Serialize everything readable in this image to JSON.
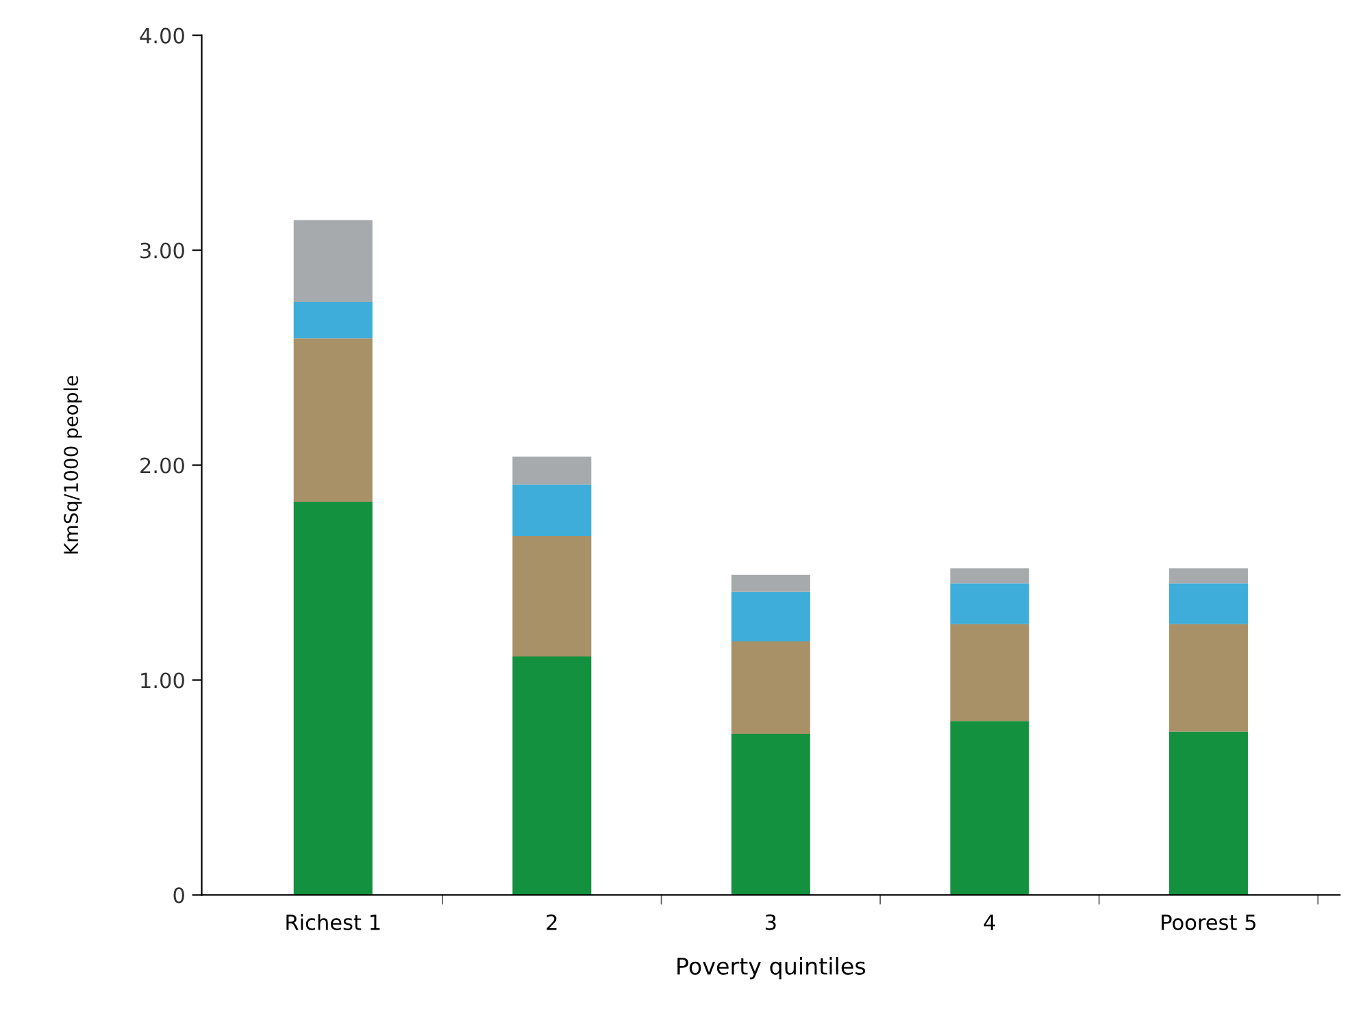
{
  "chart_data": {
    "type": "bar",
    "stacked": true,
    "xlabel": "Poverty quintiles",
    "ylabel": "KmSq/1000 people",
    "categories": [
      "Richest 1",
      "2",
      "3",
      "4",
      "Poorest 5"
    ],
    "series": [
      {
        "color": "#14913f",
        "values": [
          1.83,
          1.11,
          0.75,
          0.81,
          0.76
        ]
      },
      {
        "color": "#a89067",
        "values": [
          0.76,
          0.56,
          0.43,
          0.45,
          0.5
        ]
      },
      {
        "color": "#3fadd9",
        "values": [
          0.17,
          0.24,
          0.23,
          0.19,
          0.19
        ]
      },
      {
        "color": "#a7aaad",
        "values": [
          0.38,
          0.13,
          0.08,
          0.07,
          0.07
        ]
      }
    ],
    "ylim": [
      0,
      4
    ],
    "yticks": [
      0,
      {
        "value": 1,
        "label": "1.00"
      },
      {
        "value": 2,
        "label": "2.00"
      },
      {
        "value": 3,
        "label": "3.00"
      },
      {
        "value": 4,
        "label": "4.00"
      }
    ],
    "grid": false,
    "legend": false
  }
}
